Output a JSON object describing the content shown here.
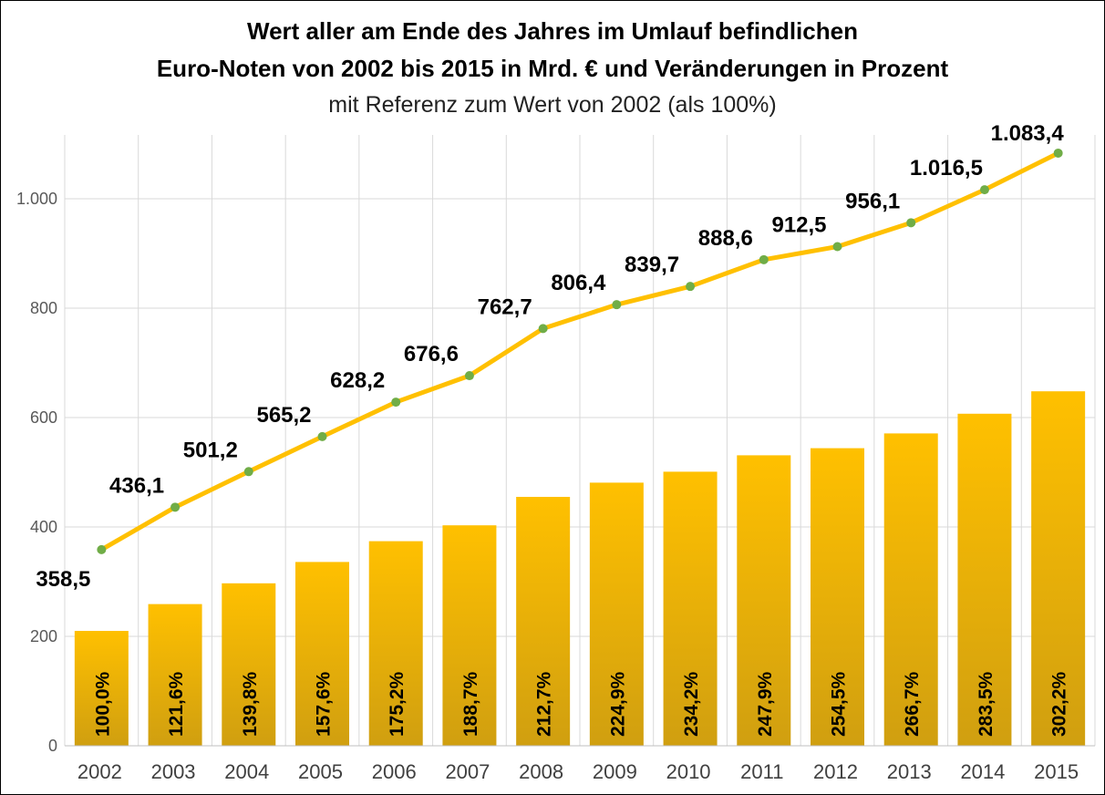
{
  "chart_data": {
    "type": "bar+line",
    "title": "Wert aller am Ende des Jahres im Umlauf befindlichen",
    "title_line2": "Euro-Noten von 2002 bis 2015 in Mrd. € und Veränderungen in Prozent",
    "subtitle": "mit Referenz zum Wert von 2002 (als 100%)",
    "categories": [
      "2002",
      "2003",
      "2004",
      "2005",
      "2006",
      "2007",
      "2008",
      "2009",
      "2010",
      "2011",
      "2012",
      "2013",
      "2014",
      "2015"
    ],
    "ylim": [
      0,
      1100
    ],
    "yticks": [
      0,
      200,
      400,
      600,
      800,
      1000
    ],
    "ytick_labels": [
      "0",
      "200",
      "400",
      "600",
      "800",
      "1.000"
    ],
    "grid": true,
    "series": [
      {
        "type": "line",
        "values": [
          358.5,
          436.1,
          501.2,
          565.2,
          628.2,
          676.6,
          762.7,
          806.4,
          839.7,
          888.6,
          912.5,
          956.1,
          1016.5,
          1083.4
        ],
        "labels": [
          "358,5",
          "436,1",
          "501,2",
          "565,2",
          "628,2",
          "676,6",
          "762,7",
          "806,4",
          "839,7",
          "888,6",
          "912,5",
          "956,1",
          "1.016,5",
          "1.083,4"
        ],
        "color": "#FFC000",
        "marker_color": "#70AD47"
      },
      {
        "type": "bar",
        "values": [
          210,
          259,
          297,
          336,
          374,
          403,
          455,
          481,
          501,
          531,
          544,
          571,
          607,
          648
        ],
        "labels": [
          "100,0%",
          "121,6%",
          "139,8%",
          "157,6%",
          "175,2%",
          "188,7%",
          "212,7%",
          "224,9%",
          "234,2%",
          "247,9%",
          "254,5%",
          "266,7%",
          "283,5%",
          "302,2%"
        ],
        "color_top": "#FFC000",
        "color_bottom": "#D4A017"
      }
    ]
  }
}
